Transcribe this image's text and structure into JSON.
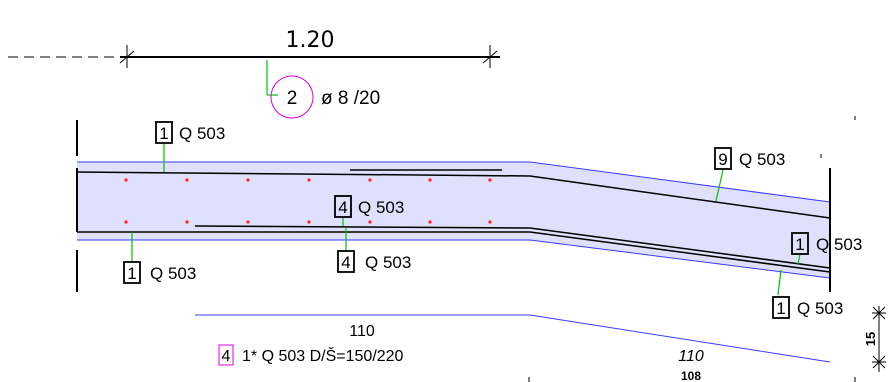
{
  "dimension_top": {
    "length": "1.20"
  },
  "bar_callout": {
    "mark": "2",
    "text": "ø 8 /20"
  },
  "rebar_labels": [
    {
      "mark": "1",
      "text": "Q 503"
    },
    {
      "mark": "4",
      "text": "Q 503"
    },
    {
      "mark": "1",
      "text": "Q 503"
    },
    {
      "mark": "4",
      "text": "Q 503"
    },
    {
      "mark": "9",
      "text": "Q 503"
    },
    {
      "mark": "1",
      "text": "Q 503"
    },
    {
      "mark": "1",
      "text": "Q 503"
    }
  ],
  "mesh_note": {
    "mark": "4",
    "text": "1* Q 503 D/Š=150/220"
  },
  "dimensions_bottom": {
    "left": "110",
    "right": "110",
    "right_sub": "108",
    "vertical": "15"
  },
  "colors": {
    "slab_fill": "#dfe0fb",
    "slab_edge": "#3a3aff",
    "leader": "#00c000",
    "circle": "#e000e0",
    "dot": "#ff2020",
    "note_box": "#e000e0"
  }
}
